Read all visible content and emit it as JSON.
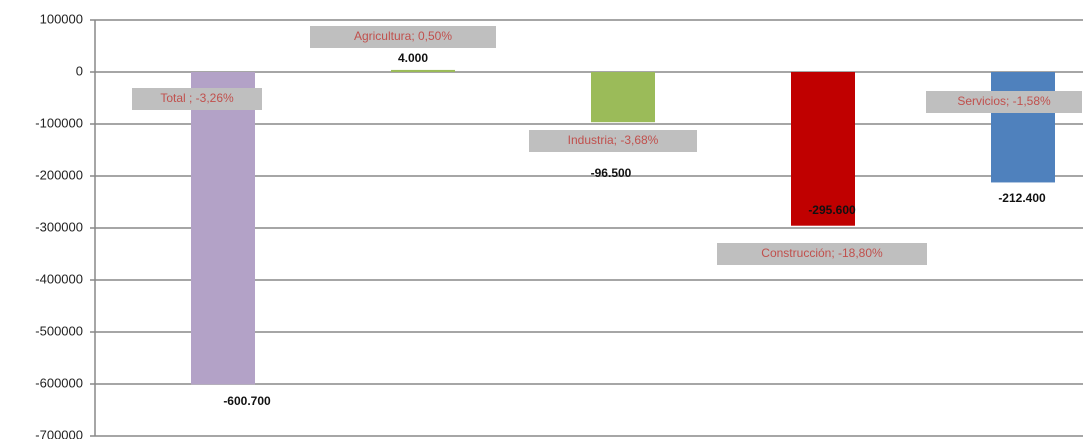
{
  "chart_data": {
    "type": "bar",
    "categories": [
      "Total ; -3,26%",
      "Agricultura; 0,50%",
      "Industria; -3,68%",
      "Construcción; -18,80%",
      "Servicios; -1,58%"
    ],
    "values": [
      -600700,
      4000,
      -96500,
      -295600,
      -212400
    ],
    "value_labels": [
      "-600.700",
      "4.000",
      "-96.500",
      "-295.600",
      "-212.400"
    ],
    "colors": [
      "#b3a2c7",
      "#9bbb59",
      "#9bbb59",
      "#c00000",
      "#4f81bd"
    ],
    "ylim": [
      -700000,
      100000
    ],
    "yticks": [
      -700000,
      -600000,
      -500000,
      -400000,
      -300000,
      -200000,
      -100000,
      0,
      100000
    ],
    "grid": true
  }
}
